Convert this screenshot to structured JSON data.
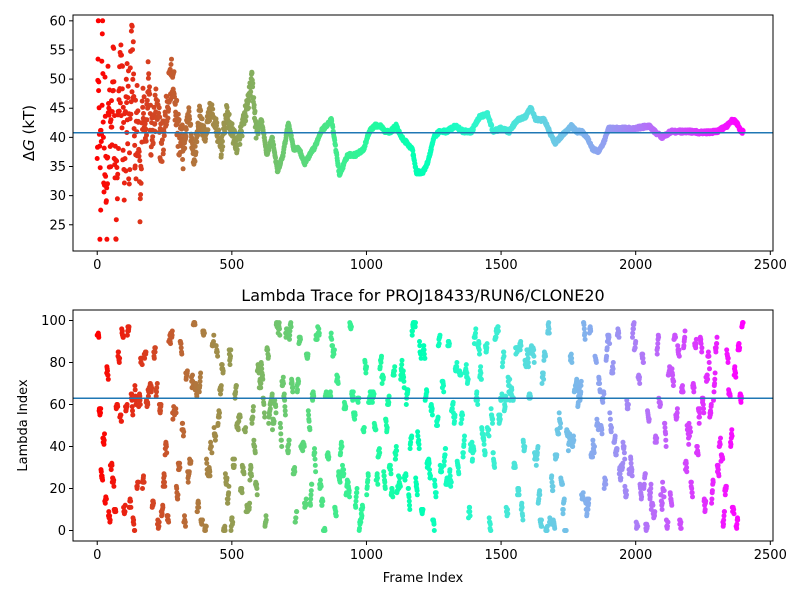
{
  "chart_data": [
    {
      "type": "scatter",
      "title": "",
      "xlabel": "",
      "ylabel": "ΔG (kT)",
      "ylabel_parts": {
        "prefix": "Δ",
        "italic": "G",
        "suffix": " (kT)"
      },
      "xlim": [
        -90,
        2510
      ],
      "ylim": [
        20.5,
        61
      ],
      "xticks": [
        0,
        500,
        1000,
        1500,
        2000,
        2500
      ],
      "xtick_labels": [
        "0",
        "500",
        "1000",
        "1500",
        "2000",
        "2500"
      ],
      "yticks": [
        25,
        30,
        35,
        40,
        45,
        50,
        55,
        60
      ],
      "ytick_labels": [
        "25",
        "30",
        "35",
        "40",
        "45",
        "50",
        "55",
        "60"
      ],
      "hline": 40.8,
      "hline_color": "#1f77b4",
      "colormap": "rainbow",
      "n_frames": 2400,
      "marker_size": 2.5,
      "anchors": [
        [
          0,
          45
        ],
        [
          5,
          55
        ],
        [
          10,
          28
        ],
        [
          15,
          40
        ],
        [
          20,
          52
        ],
        [
          25,
          32
        ],
        [
          30,
          47
        ],
        [
          35,
          23
        ],
        [
          40,
          44
        ],
        [
          50,
          38
        ],
        [
          60,
          50
        ],
        [
          70,
          26
        ],
        [
          80,
          42
        ],
        [
          90,
          52
        ],
        [
          100,
          35
        ],
        [
          110,
          46
        ],
        [
          120,
          40
        ],
        [
          130,
          55
        ],
        [
          140,
          37
        ],
        [
          150,
          44
        ],
        [
          160,
          31
        ],
        [
          170,
          48
        ],
        [
          180,
          40
        ],
        [
          190,
          52
        ],
        [
          200,
          39
        ],
        [
          220,
          45
        ],
        [
          240,
          38
        ],
        [
          260,
          46
        ],
        [
          280,
          51
        ],
        [
          300,
          41
        ],
        [
          320,
          38
        ],
        [
          340,
          44
        ],
        [
          360,
          36
        ],
        [
          380,
          44
        ],
        [
          400,
          40
        ],
        [
          420,
          45
        ],
        [
          440,
          42
        ],
        [
          460,
          38
        ],
        [
          480,
          44
        ],
        [
          500,
          41
        ],
        [
          520,
          38.5
        ],
        [
          540,
          42
        ],
        [
          560,
          46
        ],
        [
          575,
          50
        ],
        [
          590,
          41
        ],
        [
          610,
          43
        ],
        [
          630,
          37
        ],
        [
          650,
          40
        ],
        [
          670,
          34
        ],
        [
          690,
          37
        ],
        [
          710,
          42.5
        ],
        [
          730,
          38
        ],
        [
          750,
          38
        ],
        [
          770,
          35.5
        ],
        [
          790,
          37
        ],
        [
          810,
          38.5
        ],
        [
          830,
          41
        ],
        [
          850,
          42
        ],
        [
          870,
          43
        ],
        [
          880,
          40
        ],
        [
          900,
          33.5
        ],
        [
          930,
          37
        ],
        [
          960,
          37
        ],
        [
          990,
          38
        ],
        [
          1010,
          41
        ],
        [
          1030,
          42
        ],
        [
          1050,
          42
        ],
        [
          1070,
          41
        ],
        [
          1090,
          41
        ],
        [
          1110,
          42
        ],
        [
          1130,
          40
        ],
        [
          1150,
          39
        ],
        [
          1170,
          38
        ],
        [
          1185,
          34
        ],
        [
          1210,
          34
        ],
        [
          1230,
          36
        ],
        [
          1250,
          40
        ],
        [
          1270,
          41
        ],
        [
          1300,
          41
        ],
        [
          1330,
          42
        ],
        [
          1360,
          41
        ],
        [
          1390,
          41
        ],
        [
          1420,
          43.5
        ],
        [
          1450,
          44
        ],
        [
          1470,
          41
        ],
        [
          1500,
          41.5
        ],
        [
          1530,
          41
        ],
        [
          1560,
          43
        ],
        [
          1590,
          43.5
        ],
        [
          1610,
          45
        ],
        [
          1630,
          43
        ],
        [
          1660,
          43
        ],
        [
          1690,
          40
        ],
        [
          1700,
          39
        ],
        [
          1720,
          40
        ],
        [
          1740,
          41
        ],
        [
          1760,
          42
        ],
        [
          1780,
          41
        ],
        [
          1800,
          41
        ],
        [
          1820,
          40
        ],
        [
          1840,
          38
        ],
        [
          1860,
          37.5
        ],
        [
          1880,
          39
        ],
        [
          1900,
          41.5
        ],
        [
          1950,
          41.5
        ],
        [
          2000,
          41.5
        ],
        [
          2050,
          42
        ],
        [
          2070,
          41
        ],
        [
          2100,
          40
        ],
        [
          2130,
          41
        ],
        [
          2200,
          41
        ],
        [
          2250,
          40.8
        ],
        [
          2300,
          41
        ],
        [
          2340,
          42
        ],
        [
          2360,
          43
        ],
        [
          2375,
          42.5
        ],
        [
          2390,
          41
        ],
        [
          2400,
          41
        ]
      ]
    },
    {
      "type": "scatter",
      "title": "Lambda Trace for PROJ18433/RUN6/CLONE20",
      "xlabel": "Frame Index",
      "ylabel": "Lambda Index",
      "xlim": [
        -90,
        2510
      ],
      "ylim": [
        -5,
        105
      ],
      "xticks": [
        0,
        500,
        1000,
        1500,
        2000,
        2500
      ],
      "xtick_labels": [
        "0",
        "500",
        "1000",
        "1500",
        "2000",
        "2500"
      ],
      "yticks": [
        0,
        20,
        40,
        60,
        80,
        100
      ],
      "ytick_labels": [
        "0",
        "20",
        "40",
        "60",
        "80",
        "100"
      ],
      "hline": 63,
      "hline_color": "#1f77b4",
      "colormap": "rainbow",
      "n_frames": 2400,
      "value_range": [
        0,
        99
      ],
      "marker_size": 2.5
    }
  ]
}
